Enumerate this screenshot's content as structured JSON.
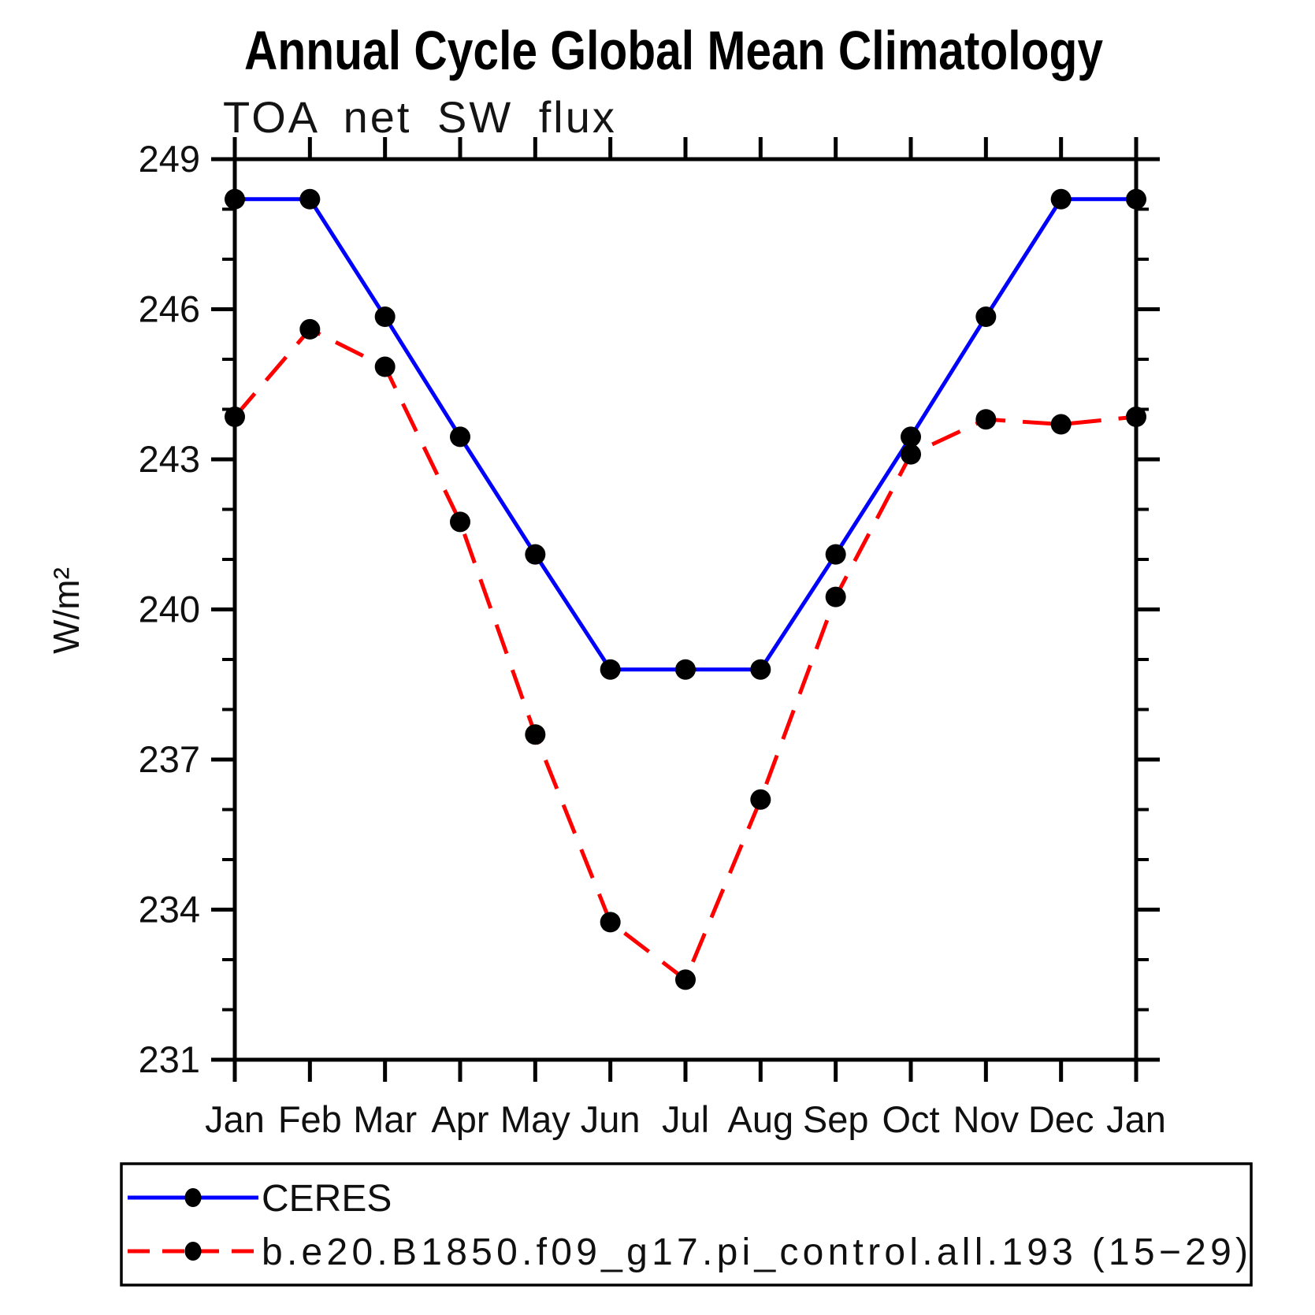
{
  "chart_data": {
    "type": "line",
    "title": "Annual Cycle Global Mean Climatology",
    "subtitle": "TOA net SW flux",
    "ylabel": "W/m²",
    "x_categories": [
      "Jan",
      "Feb",
      "Mar",
      "Apr",
      "May",
      "Jun",
      "Jul",
      "Aug",
      "Sep",
      "Oct",
      "Nov",
      "Dec",
      "Jan"
    ],
    "ylim": [
      231,
      249
    ],
    "y_major_ticks": [
      249,
      246,
      243,
      240,
      237,
      234,
      231
    ],
    "y_minor_step": 1,
    "y_major_step": 3,
    "grid": false,
    "legend_position": "bottom-left-box",
    "series": [
      {
        "name": "CERES",
        "line_color": "#0000ff",
        "line_style": "solid",
        "marker": "filled-circle",
        "marker_color": "#000000",
        "values": [
          248.2,
          248.2,
          245.85,
          243.45,
          241.1,
          238.8,
          238.8,
          238.8,
          241.1,
          243.45,
          245.85,
          248.2,
          248.2
        ]
      },
      {
        "name": "b.e20.B1850.f09_g17.pi_control.all.193 (15−29)",
        "line_color": "#ff0000",
        "line_style": "dashed",
        "marker": "filled-circle",
        "marker_color": "#000000",
        "values": [
          243.85,
          245.6,
          244.85,
          241.75,
          237.5,
          233.75,
          232.6,
          236.2,
          240.25,
          243.1,
          243.8,
          243.7,
          243.85
        ]
      }
    ]
  }
}
